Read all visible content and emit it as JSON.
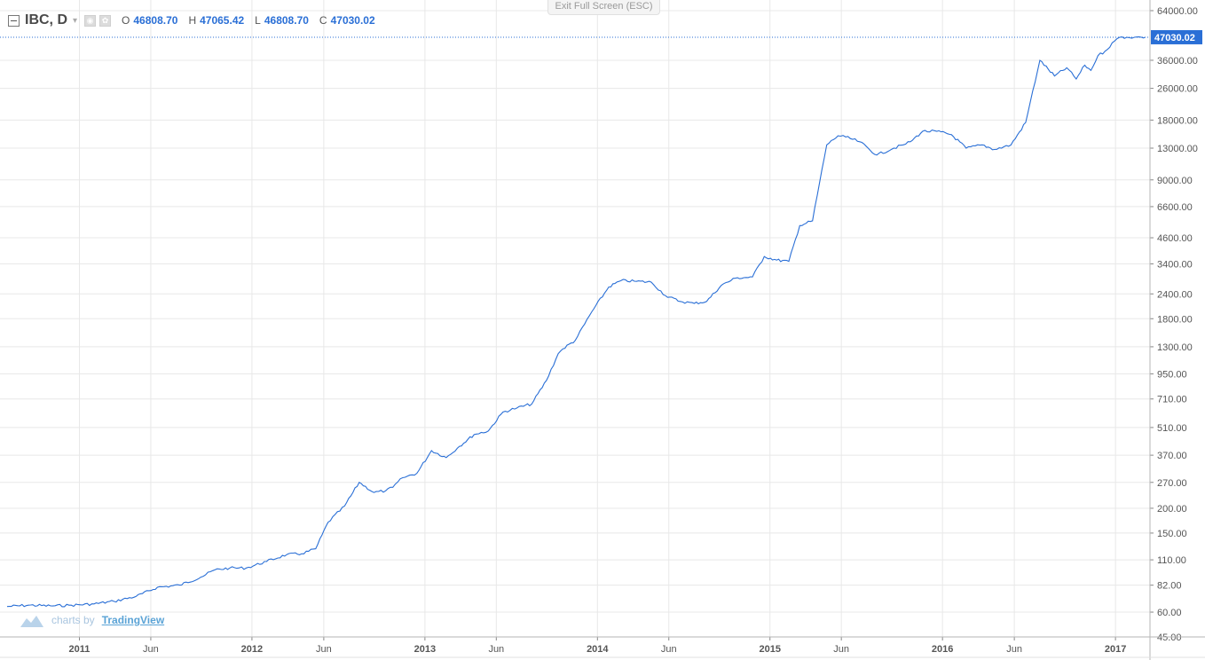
{
  "toolbar": {
    "exit_fullscreen": "Exit Full Screen (ESC)"
  },
  "legend": {
    "symbol": "IBC, D",
    "open_key": "O",
    "open": "46808.70",
    "high_key": "H",
    "high": "47065.42",
    "low_key": "L",
    "low": "46808.70",
    "close_key": "C",
    "close": "47030.02"
  },
  "watermark": {
    "prefix": "charts by",
    "brand": "TradingView"
  },
  "colors": {
    "line": "#2a6fd6",
    "grid": "#e8e8e8",
    "axis_text": "#555555",
    "price_label_bg": "#2a6fd6"
  },
  "chart_data": {
    "type": "line",
    "scale": "log",
    "grid": true,
    "title": "",
    "xlabel": "",
    "ylabel": "",
    "ylim": [
      45,
      64000
    ],
    "xlim": [
      "2010-08-01",
      "2017-03-15"
    ],
    "y_ticks": [
      64000,
      36000,
      26000,
      18000,
      13000,
      9000,
      6600,
      4600,
      3400,
      2400,
      1800,
      1300,
      950,
      710,
      510,
      370,
      270,
      200,
      150,
      110,
      82,
      60,
      45
    ],
    "y_tick_labels": [
      "64000.00",
      "36000.00",
      "26000.00",
      "18000.00",
      "13000.00",
      "9000.00",
      "6600.00",
      "4600.00",
      "3400.00",
      "2400.00",
      "1800.00",
      "1300.00",
      "950.00",
      "710.00",
      "510.00",
      "370.00",
      "270.00",
      "200.00",
      "150.00",
      "110.00",
      "82.00",
      "60.00",
      "45.00"
    ],
    "x_ticks": [
      {
        "label": "2011",
        "date": "2011-01-01"
      },
      {
        "label": "Jun",
        "date": "2011-06-01"
      },
      {
        "label": "2012",
        "date": "2012-01-01"
      },
      {
        "label": "Jun",
        "date": "2012-06-01"
      },
      {
        "label": "2013",
        "date": "2013-01-01"
      },
      {
        "label": "Jun",
        "date": "2013-06-01"
      },
      {
        "label": "2014",
        "date": "2014-01-01"
      },
      {
        "label": "Jun",
        "date": "2014-06-01"
      },
      {
        "label": "2015",
        "date": "2015-01-01"
      },
      {
        "label": "Jun",
        "date": "2015-06-01"
      },
      {
        "label": "2016",
        "date": "2016-01-01"
      },
      {
        "label": "Jun",
        "date": "2016-06-01"
      },
      {
        "label": "2017",
        "date": "2017-01-01"
      }
    ],
    "last_price": 47030.02,
    "last_price_label": "47030.02",
    "series": [
      {
        "x": [
          "2010-08-01",
          "2010-09-15",
          "2010-11-01",
          "2010-12-15",
          "2011-02-01",
          "2011-03-15",
          "2011-05-01",
          "2011-06-15",
          "2011-08-01",
          "2011-09-15",
          "2011-10-15",
          "2011-11-15",
          "2011-12-20",
          "2012-02-01",
          "2012-03-15",
          "2012-04-15",
          "2012-05-15",
          "2012-06-10",
          "2012-07-15",
          "2012-08-15",
          "2012-09-15",
          "2012-10-10",
          "2012-10-25",
          "2012-11-15",
          "2012-12-15",
          "2013-01-15",
          "2013-02-15",
          "2013-03-15",
          "2013-04-15",
          "2013-05-15",
          "2013-06-15",
          "2013-07-15",
          "2013-08-15",
          "2013-09-15",
          "2013-10-10",
          "2013-10-20",
          "2013-11-15",
          "2013-12-20",
          "2014-01-25",
          "2014-02-20",
          "2014-03-20",
          "2014-04-25",
          "2014-05-25",
          "2014-06-25",
          "2014-07-25",
          "2014-08-20",
          "2014-09-20",
          "2014-10-20",
          "2014-11-25",
          "2014-12-20",
          "2015-01-15",
          "2015-02-10",
          "2015-03-05",
          "2015-04-01",
          "2015-05-01",
          "2015-05-25",
          "2015-06-10",
          "2015-07-10",
          "2015-08-15",
          "2015-09-20",
          "2015-10-10",
          "2015-10-25",
          "2015-11-20",
          "2015-12-20",
          "2016-01-20",
          "2016-02-20",
          "2016-03-25",
          "2016-04-20",
          "2016-05-25",
          "2016-06-25",
          "2016-07-25",
          "2016-08-25",
          "2016-09-20",
          "2016-10-10",
          "2016-10-28",
          "2016-11-10",
          "2016-11-25",
          "2016-12-10",
          "2016-12-30",
          "2017-01-10",
          "2017-01-25",
          "2017-02-10",
          "2017-02-25",
          "2017-03-05"
        ],
        "y": [
          64,
          65,
          64.5,
          65,
          66,
          68,
          72,
          80,
          82,
          90,
          98,
          100,
          100,
          108,
          117,
          118,
          125,
          170,
          205,
          270,
          240,
          245,
          255,
          285,
          300,
          390,
          360,
          410,
          470,
          490,
          610,
          640,
          670,
          880,
          1200,
          1270,
          1400,
          1950,
          2600,
          2800,
          2780,
          2750,
          2350,
          2200,
          2150,
          2200,
          2650,
          2880,
          2920,
          3700,
          3550,
          3500,
          5300,
          5600,
          13500,
          15000,
          14800,
          14000,
          12000,
          13000,
          13500,
          14000,
          15800,
          15800,
          15200,
          13000,
          13500,
          12800,
          13500,
          17500,
          36000,
          30000,
          33000,
          29000,
          34000,
          32000,
          38000,
          40000,
          45000,
          47030,
          47030,
          47030,
          47030,
          47030
        ]
      }
    ]
  }
}
